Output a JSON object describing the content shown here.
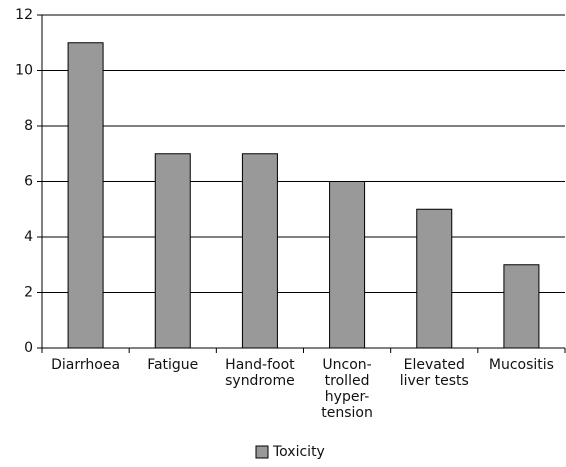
{
  "chart_data": {
    "type": "bar",
    "categories": [
      [
        "Diarrhoea"
      ],
      [
        "Fatigue"
      ],
      [
        "Hand-foot",
        "syndrome"
      ],
      [
        "Uncon-",
        "trolled",
        "hyper-",
        "tension"
      ],
      [
        "Elevated",
        "liver tests"
      ],
      [
        "Mucositis"
      ]
    ],
    "series": [
      {
        "name": "Toxicity",
        "color": "#999999",
        "values": [
          11,
          7,
          7,
          6,
          5,
          3
        ]
      }
    ],
    "ylim": [
      0,
      12
    ],
    "yticks": [
      0,
      2,
      4,
      6,
      8,
      10,
      12
    ],
    "grid": true,
    "legend": "bottom"
  }
}
